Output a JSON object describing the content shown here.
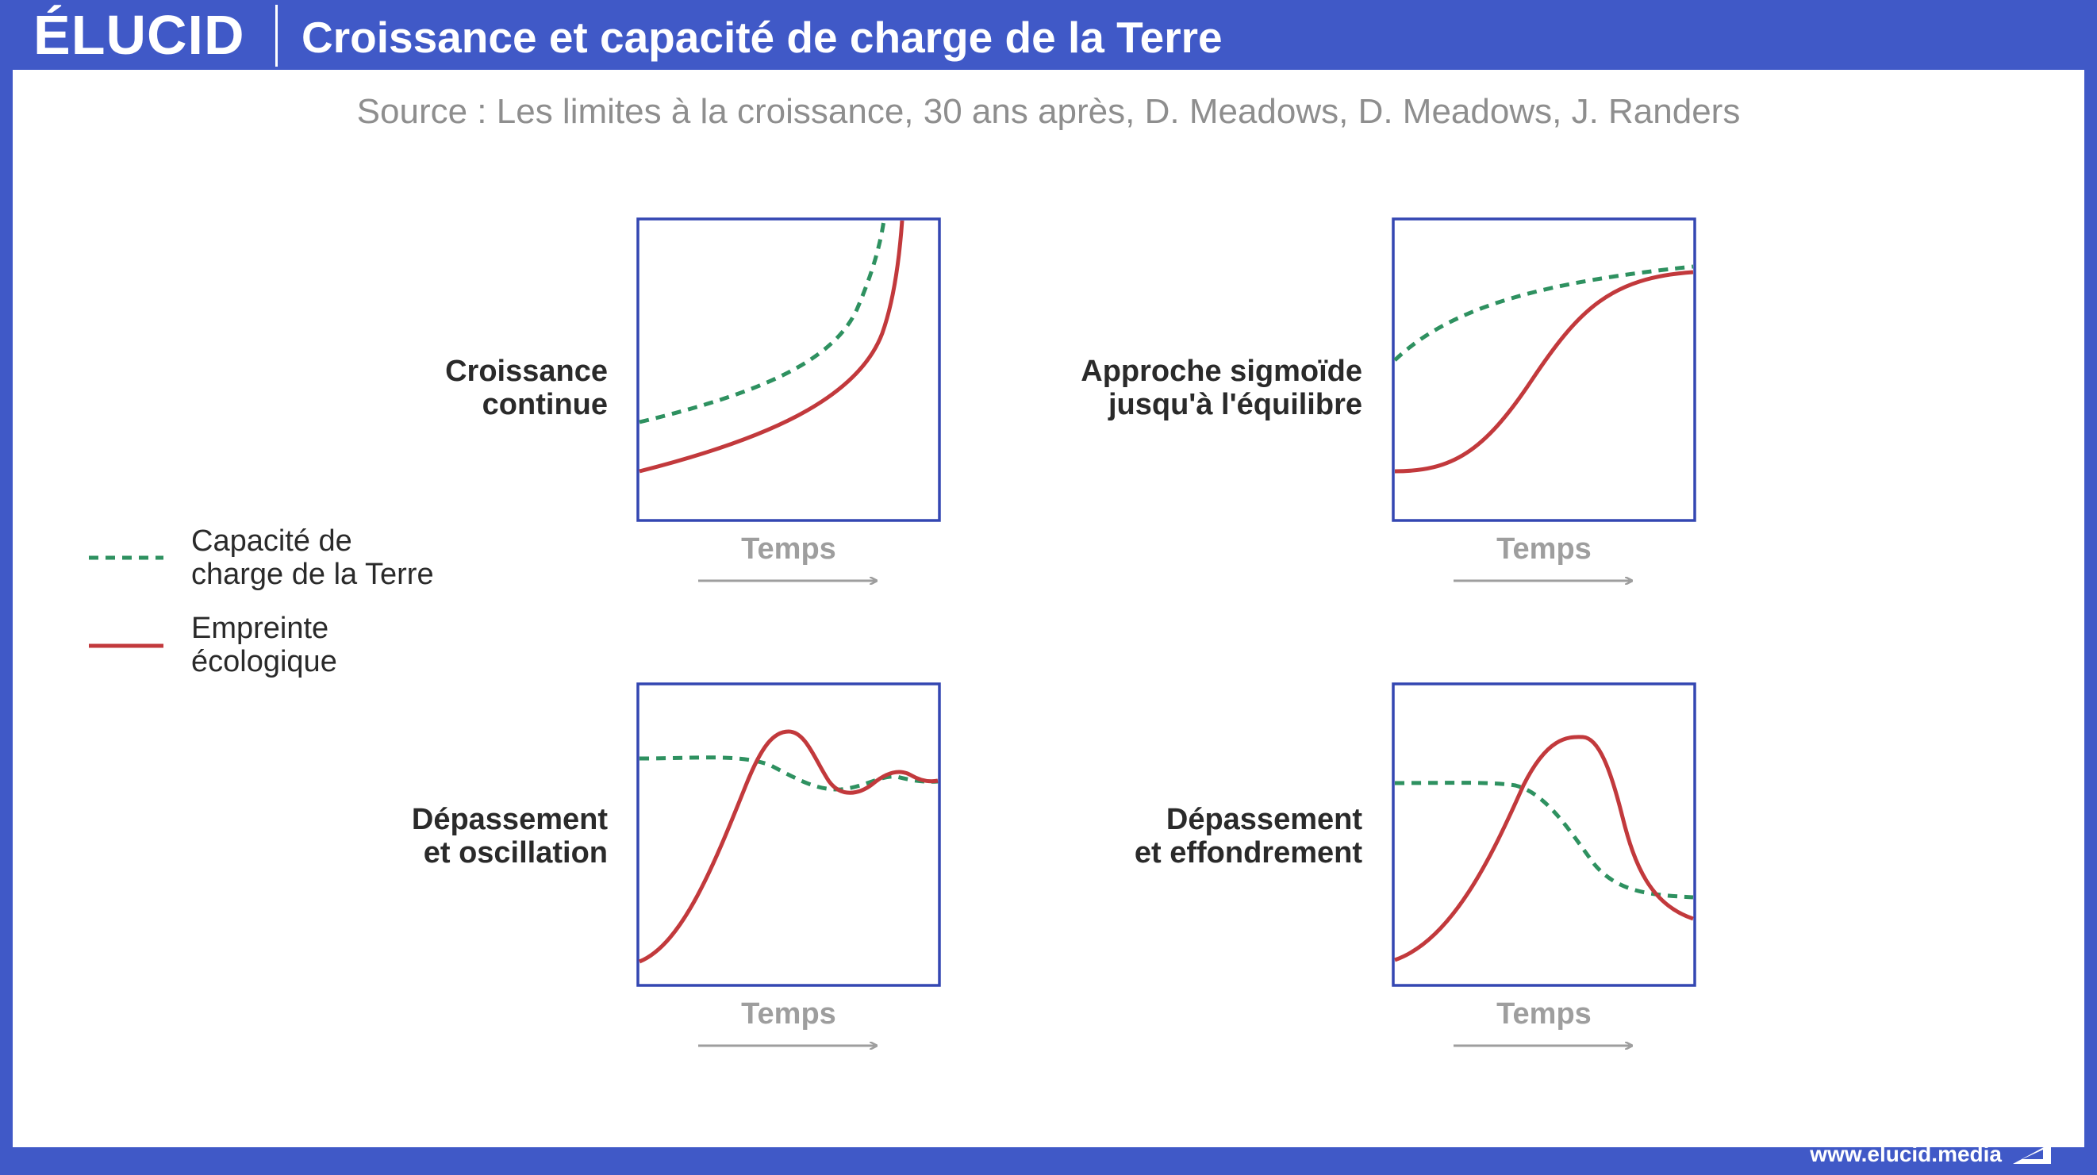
{
  "header": {
    "logo": "ÉLUCID",
    "title": "Croissance et capacité de charge de la Terre"
  },
  "source": "Source : Les limites à la croissance, 30 ans après, D. Meadows, D. Meadows, J. Randers",
  "legend": {
    "capacity": [
      "Capacité de",
      "charge de la Terre"
    ],
    "footprint": [
      "Empreinte",
      "écologique"
    ]
  },
  "panels": [
    {
      "id": "continuous",
      "title": [
        "Croissance",
        "continue"
      ],
      "axis_label": "Temps"
    },
    {
      "id": "sigmoid",
      "title": [
        "Approche sigmoïde",
        "jusqu'à l'équilibre"
      ],
      "axis_label": "Temps"
    },
    {
      "id": "oscillation",
      "title": [
        "Dépassement",
        "et oscillation"
      ],
      "axis_label": "Temps"
    },
    {
      "id": "collapse",
      "title": [
        "Dépassement",
        "et effondrement"
      ],
      "axis_label": "Temps"
    }
  ],
  "colors": {
    "brand": "#4059c7",
    "capacity": "#2e9160",
    "footprint": "#c2393c",
    "frame": "#3447b2",
    "axis": "#9e9e9e"
  },
  "footer": {
    "url": "www.elucid.media"
  }
}
